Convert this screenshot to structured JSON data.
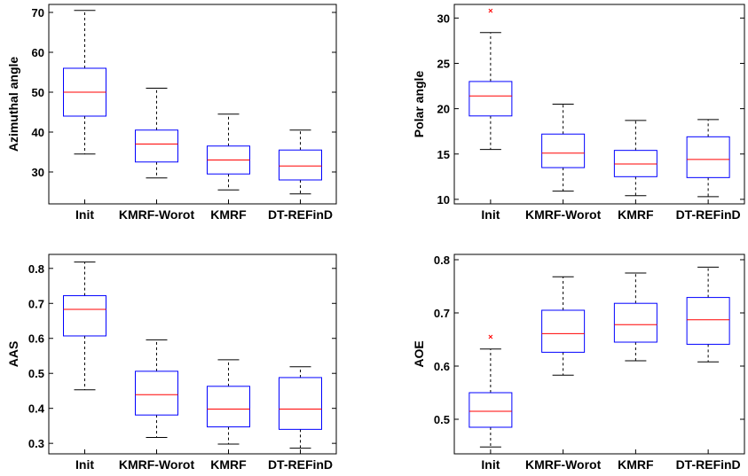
{
  "colors": {
    "box": "#0000ff",
    "median": "#ff0000",
    "whisker": "#000000",
    "outlier": "#ff0000",
    "axes": "#000000"
  },
  "chart_data": [
    {
      "type": "box",
      "title": "",
      "xlabel": "",
      "ylabel": "Azimuthal angle",
      "ylim": [
        22,
        72
      ],
      "yticks": [
        30,
        40,
        50,
        60,
        70
      ],
      "categories": [
        "Init",
        "KMRF-Worot",
        "KMRF",
        "DT-REFinD"
      ],
      "boxes": [
        {
          "min": 34.5,
          "q1": 44,
          "median": 50,
          "q3": 56,
          "max": 70.5,
          "outliers": []
        },
        {
          "min": 28.5,
          "q1": 32.5,
          "median": 37,
          "q3": 40.5,
          "max": 51,
          "outliers": []
        },
        {
          "min": 25.5,
          "q1": 29.5,
          "median": 33,
          "q3": 36.5,
          "max": 44.5,
          "outliers": []
        },
        {
          "min": 24.5,
          "q1": 28,
          "median": 31.5,
          "q3": 35.5,
          "max": 40.5,
          "outliers": []
        }
      ]
    },
    {
      "type": "box",
      "title": "",
      "xlabel": "",
      "ylabel": "Polar angle",
      "ylim": [
        9.5,
        31.5
      ],
      "yticks": [
        10,
        15,
        20,
        25,
        30
      ],
      "categories": [
        "Init",
        "KMRF-Worot",
        "KMRF",
        "DT-REFinD"
      ],
      "boxes": [
        {
          "min": 15.5,
          "q1": 19.2,
          "median": 21.4,
          "q3": 23,
          "max": 28.4,
          "outliers": [
            30.8
          ]
        },
        {
          "min": 10.9,
          "q1": 13.5,
          "median": 15.1,
          "q3": 17.2,
          "max": 20.5,
          "outliers": []
        },
        {
          "min": 10.4,
          "q1": 12.5,
          "median": 13.9,
          "q3": 15.4,
          "max": 18.7,
          "outliers": []
        },
        {
          "min": 10.3,
          "q1": 12.4,
          "median": 14.4,
          "q3": 16.9,
          "max": 18.8,
          "outliers": []
        }
      ]
    },
    {
      "type": "box",
      "title": "",
      "xlabel": "",
      "ylabel": "AAS",
      "ylim": [
        0.27,
        0.84
      ],
      "yticks": [
        0.3,
        0.4,
        0.5,
        0.6,
        0.7,
        0.8
      ],
      "categories": [
        "Init",
        "KMRF-Worot",
        "KMRF",
        "DT-REFinD"
      ],
      "boxes": [
        {
          "min": 0.453,
          "q1": 0.607,
          "median": 0.683,
          "q3": 0.722,
          "max": 0.818,
          "outliers": []
        },
        {
          "min": 0.317,
          "q1": 0.381,
          "median": 0.439,
          "q3": 0.506,
          "max": 0.596,
          "outliers": []
        },
        {
          "min": 0.298,
          "q1": 0.347,
          "median": 0.398,
          "q3": 0.463,
          "max": 0.539,
          "outliers": []
        },
        {
          "min": 0.286,
          "q1": 0.34,
          "median": 0.398,
          "q3": 0.488,
          "max": 0.519,
          "outliers": []
        }
      ]
    },
    {
      "type": "box",
      "title": "",
      "xlabel": "",
      "ylabel": "AOE",
      "ylim": [
        0.435,
        0.81
      ],
      "yticks": [
        0.5,
        0.6,
        0.7,
        0.8
      ],
      "categories": [
        "Init",
        "KMRF-Worot",
        "KMRF",
        "DT-REFinD"
      ],
      "boxes": [
        {
          "min": 0.448,
          "q1": 0.485,
          "median": 0.515,
          "q3": 0.55,
          "max": 0.632,
          "outliers": [
            0.655
          ]
        },
        {
          "min": 0.583,
          "q1": 0.626,
          "median": 0.661,
          "q3": 0.705,
          "max": 0.768,
          "outliers": []
        },
        {
          "min": 0.61,
          "q1": 0.645,
          "median": 0.678,
          "q3": 0.718,
          "max": 0.775,
          "outliers": []
        },
        {
          "min": 0.608,
          "q1": 0.641,
          "median": 0.687,
          "q3": 0.729,
          "max": 0.786,
          "outliers": []
        }
      ]
    }
  ]
}
